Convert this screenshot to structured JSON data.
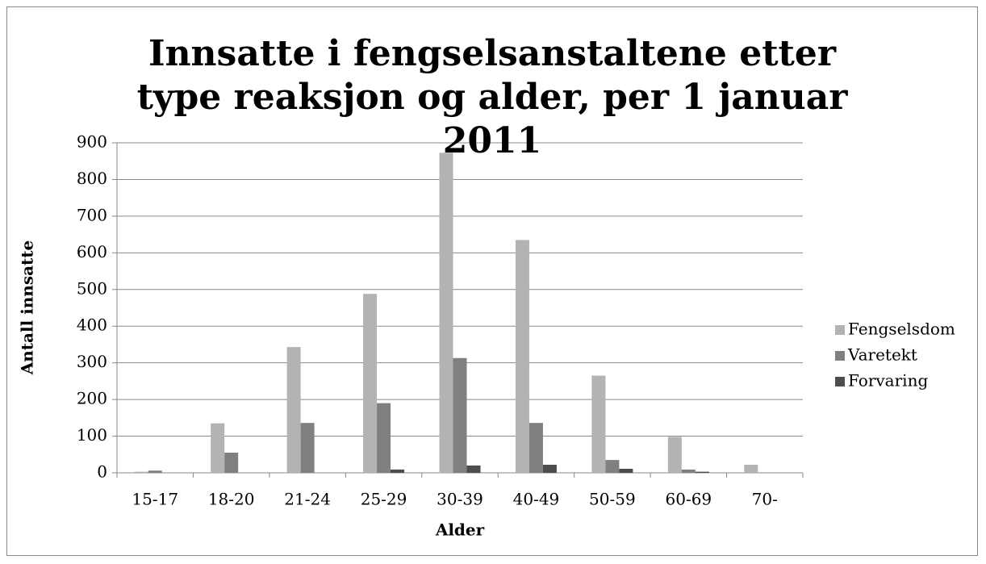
{
  "chart_data": {
    "type": "bar",
    "title": "Innsatte i fengselsanstaltene etter type reaksjon og alder, per 1 januar 2011",
    "x_label": "Alder",
    "y_label": "Antall innsatte",
    "categories": [
      "15-17",
      "18-20",
      "21-24",
      "25-29",
      "30-39",
      "40-49",
      "50-59",
      "60-69",
      "70-"
    ],
    "series": [
      {
        "name": "Fengselsdom",
        "color": "#b3b3b3",
        "values": [
          3,
          135,
          343,
          488,
          873,
          635,
          265,
          98,
          22
        ]
      },
      {
        "name": "Varetekt",
        "color": "#808080",
        "values": [
          6,
          55,
          136,
          190,
          313,
          136,
          35,
          9,
          1
        ]
      },
      {
        "name": "Forvaring",
        "color": "#4d4d4d",
        "values": [
          0,
          0,
          0,
          9,
          20,
          22,
          11,
          3,
          0
        ]
      }
    ],
    "ylim": [
      0,
      900
    ],
    "yticks": [
      0,
      100,
      200,
      300,
      400,
      500,
      600,
      700,
      800,
      900
    ],
    "grid": true,
    "legend": "right"
  }
}
